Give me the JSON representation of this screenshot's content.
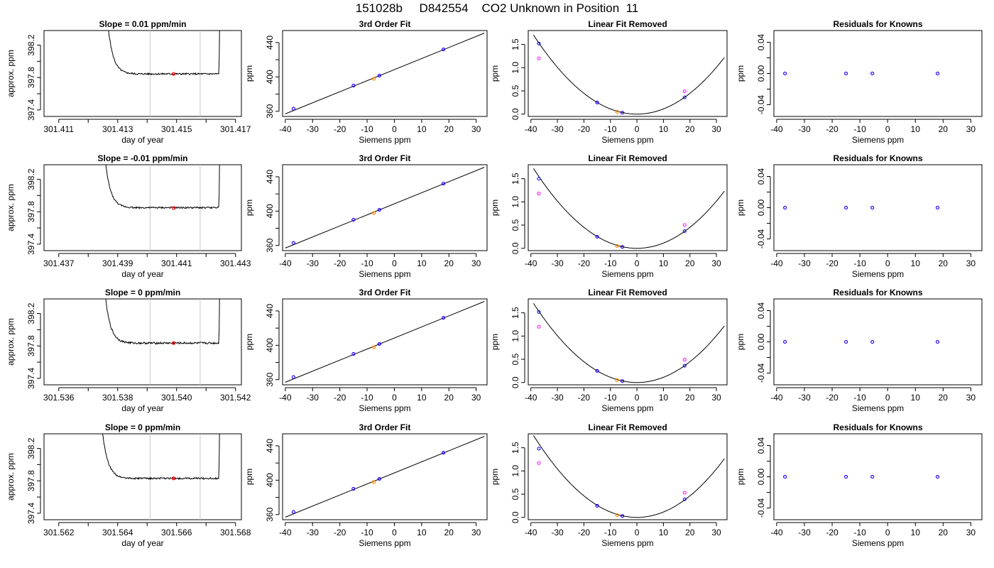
{
  "header": {
    "title": "151028b     D842554    CO2 Unknown in Position  11"
  },
  "colors": {
    "trace": "#000000",
    "vline": "#c8c8c8",
    "marker": "#ff0000",
    "known": "#0000ff",
    "unknown": "#ff00ff",
    "sample": "#ff8c00"
  },
  "chart_data": [
    {
      "type": "line",
      "row": 0,
      "col": 0,
      "title": "Slope =  0.01  ppm/min",
      "xlabel": "day of year",
      "ylabel": "approx. ppm",
      "xlim": [
        301.4105,
        301.4172
      ],
      "ylim": [
        397.32,
        398.38
      ],
      "xticks": [
        301.411,
        301.412,
        301.413,
        301.414,
        301.415,
        301.416,
        301.417
      ],
      "xtick_labels": [
        "301.411",
        "",
        "301.413",
        "",
        "301.415",
        "",
        "301.417"
      ],
      "yticks": [
        397.4,
        397.6,
        397.8,
        398.0,
        398.2
      ],
      "ytick_labels": [
        "397.4",
        "",
        "397.8",
        "",
        "398.2"
      ],
      "vlines": [
        301.4141,
        301.4158
      ],
      "marker": [
        301.4149,
        397.845
      ],
      "trace": {
        "x_start": 301.4126,
        "x_end": 301.4165,
        "plateau": 397.845,
        "noise": 0.01
      }
    },
    {
      "type": "line",
      "row": 0,
      "col": 1,
      "title": "3rd Order Fit",
      "xlabel": "Siemens ppm",
      "ylabel": "ppm",
      "xlim": [
        -41,
        34
      ],
      "ylim": [
        354,
        454
      ],
      "xticks": [
        -40,
        -30,
        -20,
        -10,
        0,
        10,
        20,
        30
      ],
      "yticks": [
        360,
        380,
        400,
        420,
        440
      ],
      "ytick_labels": [
        "360",
        "",
        "400",
        "",
        "440"
      ],
      "fit_line": {
        "x": [
          -40,
          33
        ],
        "y": [
          357,
          451
        ]
      },
      "points_known": [
        [
          -37,
          363
        ],
        [
          -15,
          390
        ],
        [
          -5.5,
          401.5
        ],
        [
          18,
          432
        ]
      ],
      "points_unknown": [
        [
          -37,
          363
        ],
        [
          -15,
          390
        ],
        [
          -5.5,
          401.5
        ],
        [
          18,
          432
        ]
      ],
      "point_sample": [
        [
          -7.5,
          397.8
        ]
      ]
    },
    {
      "type": "line",
      "row": 0,
      "col": 2,
      "title": "Linear Fit Removed",
      "xlabel": "Siemens ppm",
      "ylabel": "ppm",
      "xlim": [
        -41,
        34
      ],
      "ylim": [
        -0.05,
        1.8
      ],
      "xticks": [
        -40,
        -30,
        -20,
        -10,
        0,
        10,
        20,
        30
      ],
      "yticks": [
        0,
        0.5,
        1.0,
        1.5
      ],
      "ytick_labels": [
        "0.0",
        "0.5",
        "1.0",
        "1.5"
      ],
      "curve": {
        "a": 0.00112,
        "x": [
          -39,
          33
        ]
      },
      "points_known": [
        [
          -37,
          1.52
        ],
        [
          -15,
          0.25
        ],
        [
          -5.5,
          0.03
        ],
        [
          18,
          0.36
        ]
      ],
      "points_unknown": [
        [
          -37,
          1.2
        ],
        [
          -15,
          0.25
        ],
        [
          -5.5,
          0.03
        ],
        [
          18,
          0.49
        ]
      ],
      "point_sample": [
        [
          -7.5,
          0.05
        ]
      ]
    },
    {
      "type": "scatter",
      "row": 0,
      "col": 3,
      "title": "Residuals for Knowns",
      "xlabel": "Siemens ppm",
      "ylabel": "ppm",
      "xlim": [
        -41,
        34
      ],
      "ylim": [
        -0.055,
        0.055
      ],
      "xticks": [
        -40,
        -30,
        -20,
        -10,
        0,
        10,
        20,
        30
      ],
      "yticks": [
        -0.04,
        -0.02,
        0,
        0.02,
        0.04
      ],
      "ytick_labels": [
        "-0.04",
        "",
        "0.00",
        "",
        "0.04"
      ],
      "points_known": [
        [
          -37,
          0
        ],
        [
          -15,
          0
        ],
        [
          -5.5,
          0
        ],
        [
          18,
          0
        ]
      ],
      "points_unknown": [
        [
          -37,
          0
        ],
        [
          -15,
          0
        ],
        [
          -5.5,
          0
        ],
        [
          18,
          0
        ]
      ]
    },
    {
      "type": "line",
      "row": 1,
      "col": 0,
      "title": "Slope =  -0.01  ppm/min",
      "xlabel": "day of year",
      "ylabel": "approx. ppm",
      "xlim": [
        301.4365,
        301.4432
      ],
      "ylim": [
        397.32,
        398.38
      ],
      "xticks": [
        301.437,
        301.438,
        301.439,
        301.44,
        301.441,
        301.442,
        301.443
      ],
      "xtick_labels": [
        "301.437",
        "",
        "301.439",
        "",
        "301.441",
        "",
        "301.443"
      ],
      "yticks": [
        397.4,
        397.6,
        397.8,
        398.0,
        398.2
      ],
      "ytick_labels": [
        "397.4",
        "",
        "397.8",
        "",
        "398.2"
      ],
      "vlines": [
        301.4401,
        301.4418
      ],
      "marker": [
        301.4409,
        397.845
      ],
      "trace": {
        "x_start": 301.4385,
        "x_end": 301.4425,
        "plateau": 397.85,
        "noise": 0.01
      }
    },
    {
      "type": "line",
      "row": 1,
      "col": 1,
      "title": "3rd Order Fit",
      "xlabel": "Siemens ppm",
      "ylabel": "ppm",
      "xlim": [
        -41,
        34
      ],
      "ylim": [
        354,
        454
      ],
      "xticks": [
        -40,
        -30,
        -20,
        -10,
        0,
        10,
        20,
        30
      ],
      "yticks": [
        360,
        380,
        400,
        420,
        440
      ],
      "ytick_labels": [
        "360",
        "",
        "400",
        "",
        "440"
      ],
      "fit_line": {
        "x": [
          -40,
          33
        ],
        "y": [
          357,
          451
        ]
      },
      "points_known": [
        [
          -37,
          363
        ],
        [
          -15,
          390
        ],
        [
          -5.5,
          401.5
        ],
        [
          18,
          432
        ]
      ],
      "points_unknown": [
        [
          -37,
          363
        ],
        [
          -15,
          390
        ],
        [
          -5.5,
          401.5
        ],
        [
          18,
          432
        ]
      ],
      "point_sample": [
        [
          -7.5,
          397.8
        ]
      ]
    },
    {
      "type": "line",
      "row": 1,
      "col": 2,
      "title": "Linear Fit Removed",
      "xlabel": "Siemens ppm",
      "ylabel": "ppm",
      "xlim": [
        -41,
        34
      ],
      "ylim": [
        -0.05,
        1.8
      ],
      "xticks": [
        -40,
        -30,
        -20,
        -10,
        0,
        10,
        20,
        30
      ],
      "yticks": [
        0,
        0.5,
        1.0,
        1.5
      ],
      "ytick_labels": [
        "0.0",
        "0.5",
        "1.0",
        "1.5"
      ],
      "curve": {
        "a": 0.00113,
        "x": [
          -39,
          33
        ]
      },
      "points_known": [
        [
          -37,
          1.5
        ],
        [
          -15,
          0.25
        ],
        [
          -5.5,
          0.03
        ],
        [
          18,
          0.37
        ]
      ],
      "points_unknown": [
        [
          -37,
          1.18
        ],
        [
          -15,
          0.25
        ],
        [
          -5.5,
          0.03
        ],
        [
          18,
          0.5
        ]
      ],
      "point_sample": [
        [
          -7.5,
          0.05
        ]
      ]
    },
    {
      "type": "scatter",
      "row": 1,
      "col": 3,
      "title": "Residuals for Knowns",
      "xlabel": "Siemens ppm",
      "ylabel": "ppm",
      "xlim": [
        -41,
        34
      ],
      "ylim": [
        -0.055,
        0.055
      ],
      "xticks": [
        -40,
        -30,
        -20,
        -10,
        0,
        10,
        20,
        30
      ],
      "yticks": [
        -0.04,
        -0.02,
        0,
        0.02,
        0.04
      ],
      "ytick_labels": [
        "-0.04",
        "",
        "0.00",
        "",
        "0.04"
      ],
      "points_known": [
        [
          -37,
          0
        ],
        [
          -15,
          0
        ],
        [
          -5.5,
          0
        ],
        [
          18,
          0
        ]
      ],
      "points_unknown": [
        [
          -37,
          0
        ],
        [
          -15,
          0
        ],
        [
          -5.5,
          0
        ],
        [
          18,
          0
        ]
      ]
    },
    {
      "type": "line",
      "row": 2,
      "col": 0,
      "title": "Slope =  0  ppm/min",
      "xlabel": "day of year",
      "ylabel": "approx. ppm",
      "xlim": [
        301.5355,
        301.5422
      ],
      "ylim": [
        397.32,
        398.38
      ],
      "xticks": [
        301.536,
        301.537,
        301.538,
        301.539,
        301.54,
        301.541,
        301.542
      ],
      "xtick_labels": [
        "301.536",
        "",
        "301.538",
        "",
        "301.540",
        "",
        "301.542"
      ],
      "yticks": [
        397.4,
        397.6,
        397.8,
        398.0,
        398.2
      ],
      "ytick_labels": [
        "397.4",
        "",
        "397.8",
        "",
        "398.2"
      ],
      "vlines": [
        301.5391,
        301.5408
      ],
      "marker": [
        301.5399,
        397.835
      ],
      "trace": {
        "x_start": 301.5375,
        "x_end": 301.5415,
        "plateau": 397.835,
        "noise": 0.012
      }
    },
    {
      "type": "line",
      "row": 2,
      "col": 1,
      "title": "3rd Order Fit",
      "xlabel": "Siemens ppm",
      "ylabel": "ppm",
      "xlim": [
        -41,
        34
      ],
      "ylim": [
        354,
        454
      ],
      "xticks": [
        -40,
        -30,
        -20,
        -10,
        0,
        10,
        20,
        30
      ],
      "yticks": [
        360,
        380,
        400,
        420,
        440
      ],
      "ytick_labels": [
        "360",
        "",
        "400",
        "",
        "440"
      ],
      "fit_line": {
        "x": [
          -40,
          33
        ],
        "y": [
          357,
          451
        ]
      },
      "points_known": [
        [
          -37,
          363
        ],
        [
          -15,
          390
        ],
        [
          -5.5,
          401.5
        ],
        [
          18,
          432
        ]
      ],
      "points_unknown": [
        [
          -37,
          363
        ],
        [
          -15,
          390
        ],
        [
          -5.5,
          401.5
        ],
        [
          18,
          432
        ]
      ],
      "point_sample": [
        [
          -7.5,
          397.8
        ]
      ]
    },
    {
      "type": "line",
      "row": 2,
      "col": 2,
      "title": "Linear Fit Removed",
      "xlabel": "Siemens ppm",
      "ylabel": "ppm",
      "xlim": [
        -41,
        34
      ],
      "ylim": [
        -0.05,
        1.8
      ],
      "xticks": [
        -40,
        -30,
        -20,
        -10,
        0,
        10,
        20,
        30
      ],
      "yticks": [
        0,
        0.5,
        1.0,
        1.5
      ],
      "ytick_labels": [
        "0.0",
        "0.5",
        "1.0",
        "1.5"
      ],
      "curve": {
        "a": 0.00112,
        "x": [
          -39,
          33
        ]
      },
      "points_known": [
        [
          -37,
          1.52
        ],
        [
          -15,
          0.25
        ],
        [
          -5.5,
          0.03
        ],
        [
          18,
          0.36
        ]
      ],
      "points_unknown": [
        [
          -37,
          1.2
        ],
        [
          -15,
          0.25
        ],
        [
          -5.5,
          0.03
        ],
        [
          18,
          0.49
        ]
      ],
      "point_sample": [
        [
          -7.5,
          0.05
        ]
      ]
    },
    {
      "type": "scatter",
      "row": 2,
      "col": 3,
      "title": "Residuals for Knowns",
      "xlabel": "Siemens ppm",
      "ylabel": "ppm",
      "xlim": [
        -41,
        34
      ],
      "ylim": [
        -0.055,
        0.055
      ],
      "xticks": [
        -40,
        -30,
        -20,
        -10,
        0,
        10,
        20,
        30
      ],
      "yticks": [
        -0.04,
        -0.02,
        0,
        0.02,
        0.04
      ],
      "ytick_labels": [
        "-0.04",
        "",
        "0.00",
        "",
        "0.04"
      ],
      "points_known": [
        [
          -37,
          0
        ],
        [
          -15,
          0
        ],
        [
          -5.5,
          0
        ],
        [
          18,
          0
        ]
      ],
      "points_unknown": [
        [
          -37,
          0
        ],
        [
          -15,
          0
        ],
        [
          -5.5,
          0
        ],
        [
          18,
          0
        ]
      ]
    },
    {
      "type": "line",
      "row": 3,
      "col": 0,
      "title": "Slope =  0  ppm/min",
      "xlabel": "day of year",
      "ylabel": "approx. ppm",
      "xlim": [
        301.5615,
        301.5682
      ],
      "ylim": [
        397.32,
        398.38
      ],
      "xticks": [
        301.562,
        301.563,
        301.564,
        301.565,
        301.566,
        301.567,
        301.568
      ],
      "xtick_labels": [
        "301.562",
        "",
        "301.564",
        "",
        "301.566",
        "",
        "301.568"
      ],
      "yticks": [
        397.4,
        397.6,
        397.8,
        398.0,
        398.2
      ],
      "ytick_labels": [
        "397.4",
        "",
        "397.8",
        "",
        "398.2"
      ],
      "vlines": [
        301.5651,
        301.5668
      ],
      "marker": [
        301.5659,
        397.83
      ],
      "trace": {
        "x_start": 301.5634,
        "x_end": 301.5675,
        "plateau": 397.83,
        "noise": 0.01
      }
    },
    {
      "type": "line",
      "row": 3,
      "col": 1,
      "title": "3rd Order Fit",
      "xlabel": "Siemens ppm",
      "ylabel": "ppm",
      "xlim": [
        -41,
        34
      ],
      "ylim": [
        354,
        454
      ],
      "xticks": [
        -40,
        -30,
        -20,
        -10,
        0,
        10,
        20,
        30
      ],
      "yticks": [
        360,
        380,
        400,
        420,
        440
      ],
      "ytick_labels": [
        "360",
        "",
        "400",
        "",
        "440"
      ],
      "fit_line": {
        "x": [
          -40,
          33
        ],
        "y": [
          357,
          451
        ]
      },
      "points_known": [
        [
          -37,
          363
        ],
        [
          -15,
          390
        ],
        [
          -5.5,
          401.5
        ],
        [
          18,
          432
        ]
      ],
      "points_unknown": [
        [
          -37,
          363
        ],
        [
          -15,
          390
        ],
        [
          -5.5,
          401.5
        ],
        [
          18,
          432
        ]
      ],
      "point_sample": [
        [
          -7.5,
          397.8
        ]
      ]
    },
    {
      "type": "line",
      "row": 3,
      "col": 2,
      "title": "Linear Fit Removed",
      "xlabel": "Siemens ppm",
      "ylabel": "ppm",
      "xlim": [
        -41,
        34
      ],
      "ylim": [
        -0.05,
        1.8
      ],
      "xticks": [
        -40,
        -30,
        -20,
        -10,
        0,
        10,
        20,
        30
      ],
      "yticks": [
        0,
        0.5,
        1.0,
        1.5
      ],
      "ytick_labels": [
        "0.0",
        "0.5",
        "1.0",
        "1.5"
      ],
      "curve": {
        "a": 0.00116,
        "x": [
          -39,
          33
        ]
      },
      "points_known": [
        [
          -37,
          1.48
        ],
        [
          -15,
          0.25
        ],
        [
          -5.5,
          0.03
        ],
        [
          18,
          0.39
        ]
      ],
      "points_unknown": [
        [
          -37,
          1.17
        ],
        [
          -15,
          0.25
        ],
        [
          -5.5,
          0.03
        ],
        [
          18,
          0.53
        ]
      ],
      "point_sample": [
        [
          -7.5,
          0.05
        ]
      ]
    },
    {
      "type": "scatter",
      "row": 3,
      "col": 3,
      "title": "Residuals for Knowns",
      "xlabel": "Siemens ppm",
      "ylabel": "ppm",
      "xlim": [
        -41,
        34
      ],
      "ylim": [
        -0.055,
        0.055
      ],
      "xticks": [
        -40,
        -30,
        -20,
        -10,
        0,
        10,
        20,
        30
      ],
      "yticks": [
        -0.04,
        -0.02,
        0,
        0.02,
        0.04
      ],
      "ytick_labels": [
        "-0.04",
        "",
        "0.00",
        "",
        "0.04"
      ],
      "points_known": [
        [
          -37,
          0
        ],
        [
          -15,
          0
        ],
        [
          -5.5,
          0
        ],
        [
          18,
          0
        ]
      ],
      "points_unknown": [
        [
          -37,
          0
        ],
        [
          -15,
          0
        ],
        [
          -5.5,
          0
        ],
        [
          18,
          0
        ]
      ]
    }
  ]
}
